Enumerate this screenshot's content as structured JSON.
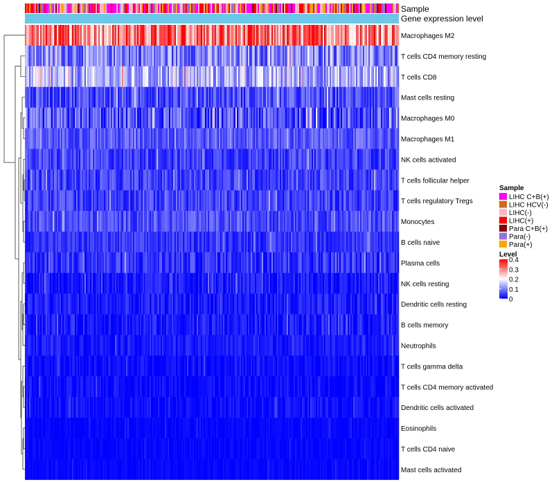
{
  "chart_data": {
    "type": "heatmap",
    "title": "",
    "annotation_tracks": [
      {
        "name": "Sample",
        "palette_order": [
          "LIHC C+B(+)",
          "LIHC HCV(-)",
          "LIHC(-)",
          "LIHC(+)",
          "Para C+B(+)",
          "Para(-)",
          "Para(+)"
        ]
      },
      {
        "name": "Gene expression level",
        "color": "#6cc6e8"
      }
    ],
    "rows": [
      {
        "label": "Macrophages M2",
        "mean": 0.3,
        "spread": 0.1
      },
      {
        "label": "T cells CD4 memory resting",
        "mean": 0.1,
        "spread": 0.07
      },
      {
        "label": "T cells CD8",
        "mean": 0.13,
        "spread": 0.07
      },
      {
        "label": "Mast cells resting",
        "mean": 0.06,
        "spread": 0.05
      },
      {
        "label": "Macrophages M0",
        "mean": 0.06,
        "spread": 0.07
      },
      {
        "label": "Macrophages M1",
        "mean": 0.07,
        "spread": 0.04
      },
      {
        "label": "NK cells activated",
        "mean": 0.05,
        "spread": 0.04
      },
      {
        "label": "T cells follicular helper",
        "mean": 0.05,
        "spread": 0.04
      },
      {
        "label": "T cells regulatory  Tregs",
        "mean": 0.05,
        "spread": 0.04
      },
      {
        "label": "Monocytes",
        "mean": 0.06,
        "spread": 0.04
      },
      {
        "label": "B cells naive",
        "mean": 0.04,
        "spread": 0.03
      },
      {
        "label": "Plasma cells",
        "mean": 0.04,
        "spread": 0.04
      },
      {
        "label": "NK cells resting",
        "mean": 0.02,
        "spread": 0.03
      },
      {
        "label": "Dendritic cells resting",
        "mean": 0.02,
        "spread": 0.03
      },
      {
        "label": "B cells memory",
        "mean": 0.02,
        "spread": 0.03
      },
      {
        "label": "Neutrophils",
        "mean": 0.02,
        "spread": 0.02
      },
      {
        "label": "T cells gamma delta",
        "mean": 0.01,
        "spread": 0.02
      },
      {
        "label": "T cells CD4 memory activated",
        "mean": 0.01,
        "spread": 0.02
      },
      {
        "label": "Dendritic cells activated",
        "mean": 0.01,
        "spread": 0.02
      },
      {
        "label": "Eosinophils",
        "mean": 0.005,
        "spread": 0.01
      },
      {
        "label": "T cells CD4 naive",
        "mean": 0.005,
        "spread": 0.01
      },
      {
        "label": "Mast cells activated",
        "mean": 0.005,
        "spread": 0.01
      }
    ],
    "legend_sample": {
      "title": "Sample",
      "entries": [
        {
          "label": "LIHC C+B(+)",
          "color": "#ff00ff"
        },
        {
          "label": "LIHC HCV(-)",
          "color": "#d2691e"
        },
        {
          "label": "LIHC(-)",
          "color": "#ffb6c1"
        },
        {
          "label": "LIHC(+)",
          "color": "#ff0000"
        },
        {
          "label": "Para C+B(+)",
          "color": "#8b0000"
        },
        {
          "label": "Para(-)",
          "color": "#9370db"
        },
        {
          "label": "Para(+)",
          "color": "#ffa500"
        }
      ]
    },
    "legend_level": {
      "title": "Level",
      "range": [
        0,
        0.4
      ],
      "ticks": [
        "0.4",
        "0.3",
        "0.2",
        "0.1",
        "0"
      ],
      "colors": {
        "low": "#0000ff",
        "mid": "#ffffff",
        "high": "#ff0000"
      }
    },
    "dendrogram": "row clustering tree (hierarchical)"
  }
}
